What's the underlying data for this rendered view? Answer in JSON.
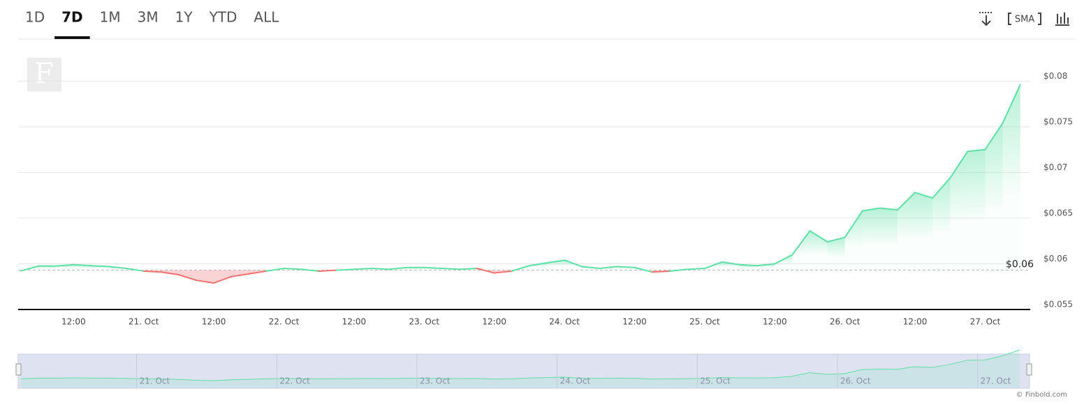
{
  "tabs": [
    "1D",
    "7D",
    "1M",
    "3M",
    "1Y",
    "YTD",
    "ALL"
  ],
  "active_tab": "7D",
  "sma": "SMA",
  "logo": "F",
  "credit": "© Finbold.com",
  "chart_data": {
    "type": "line",
    "categories": [
      null,
      null,
      null,
      "12:00",
      null,
      null,
      null,
      "21. Oct",
      null,
      null,
      null,
      "12:00",
      null,
      null,
      null,
      "22. Oct",
      null,
      null,
      null,
      "12:00",
      null,
      null,
      null,
      "23. Oct",
      null,
      null,
      null,
      "12:00",
      null,
      null,
      null,
      "24. Oct",
      null,
      null,
      null,
      "12:00",
      null,
      null,
      null,
      "25. Oct",
      null,
      null,
      null,
      "12:00",
      null,
      null,
      null,
      "26. Oct",
      null,
      null,
      null,
      "12:00",
      null,
      null,
      null,
      "27. Oct",
      null,
      null
    ],
    "series": [
      {
        "color": "#5ee0a6",
        "values": [
          0.05923,
          0.05976,
          0.05976,
          0.0599,
          0.0598,
          0.0597,
          0.0595,
          0.0592,
          0.0591,
          0.0588,
          0.0582,
          0.0579,
          0.0586,
          0.0589,
          0.0592,
          0.0595,
          0.0594,
          0.0592,
          0.0593,
          0.0594,
          0.0595,
          0.0594,
          0.0596,
          0.0596,
          0.0595,
          0.0594,
          0.0595,
          0.059,
          0.0592,
          0.0598,
          0.0601,
          0.0604,
          0.0597,
          0.0595,
          0.0597,
          0.0596,
          0.0591,
          0.0592,
          0.0594,
          0.0595,
          0.0602,
          0.0599,
          0.0598,
          0.06,
          0.061,
          0.0636,
          0.0624,
          0.0629,
          0.0658,
          0.0661,
          0.0659,
          0.0678,
          0.0672,
          0.0694,
          0.0723,
          0.0725,
          0.0754,
          0.0796
        ]
      }
    ],
    "below_color": "#f07070",
    "baseline": 0.0593,
    "baseline_label": "$0.06",
    "ylim": [
      0.055,
      0.0846
    ],
    "yticks": [
      {
        "value": 0.055,
        "label": "$0.055"
      },
      {
        "value": 0.06,
        "label": "$0.06"
      },
      {
        "value": 0.065,
        "label": "$0.065"
      },
      {
        "value": 0.07,
        "label": "$0.07"
      },
      {
        "value": 0.075,
        "label": "$0.075"
      },
      {
        "value": 0.08,
        "label": "$0.08"
      }
    ],
    "grid": true
  }
}
